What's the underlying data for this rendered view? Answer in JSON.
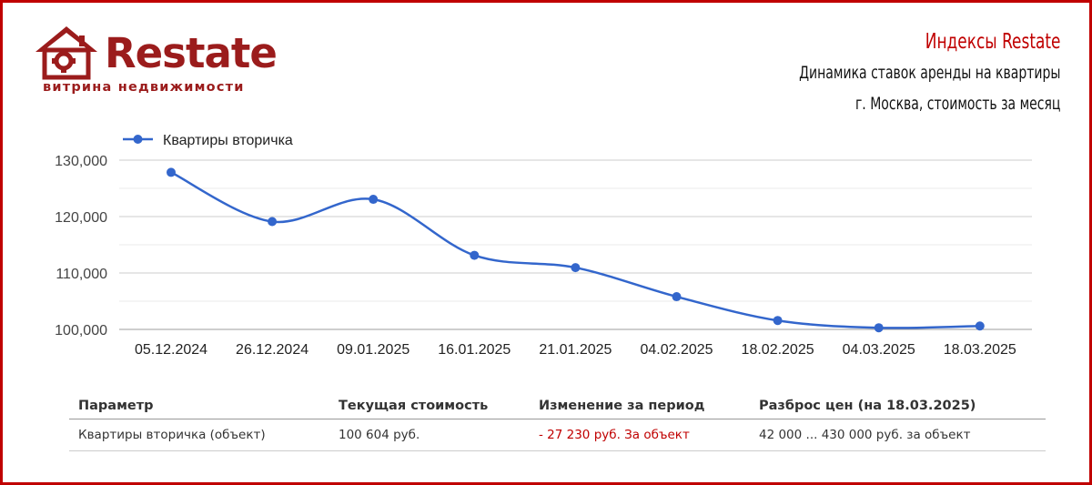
{
  "logo": {
    "word": "Restate",
    "subtitle": "витрина недвижимости"
  },
  "heading": {
    "title": "Индексы Restate",
    "line1": "Динамика ставок аренды на квартиры",
    "line2": "г. Москва, стоимость за месяц"
  },
  "colors": {
    "accent": "#c00000",
    "line": "#3366cc",
    "brand": "#9b1c1c"
  },
  "chart_data": {
    "type": "line",
    "categories": [
      "05.12.2024",
      "26.12.2024",
      "09.01.2025",
      "16.01.2025",
      "21.01.2025",
      "04.02.2025",
      "18.02.2025",
      "04.03.2025",
      "18.03.2025"
    ],
    "series": [
      {
        "name": "Квартиры вторичка",
        "values": [
          127834,
          119110,
          123060,
          113130,
          110950,
          105800,
          101580,
          100290,
          100604
        ]
      }
    ],
    "yticks": [
      "100,000",
      "110,000",
      "120,000",
      "130,000"
    ],
    "ylim": [
      100000,
      130000
    ],
    "grid": true,
    "legend": "top-left"
  },
  "table": {
    "headers": [
      "Параметр",
      "Текущая стоимость",
      "Изменение за период",
      "Разброс цен (на 18.03.2025)"
    ],
    "rows": [
      [
        "Квартиры вторичка (объект)",
        "100 604 руб.",
        "- 27 230 руб. За объект",
        "42 000 ... 430 000 руб. за объект"
      ]
    ]
  }
}
